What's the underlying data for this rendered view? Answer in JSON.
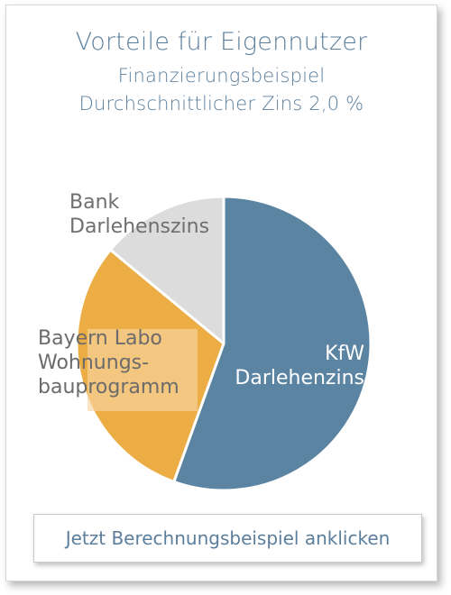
{
  "header": {
    "title": "Vorteile für Eigennutzer",
    "subtitle": "Finanzierungsbeispiel",
    "rate_note": "Durchschnittlicher Zins 2,0 %"
  },
  "chart_data": {
    "type": "pie",
    "slices": [
      {
        "label": "KfW\nDarlehenzins",
        "value": 55.5,
        "color": "#5b84a3",
        "label_color": "#ffffff"
      },
      {
        "label": "Bayern Labo\nWohnungs-\nbauprogramm",
        "value": 30.5,
        "color": "#ecad45",
        "label_color": "#6b6b6b"
      },
      {
        "label": "Bank\nDarlehenszins",
        "value": 14.0,
        "color": "#dcdcdc",
        "label_color": "#6f6f6f"
      }
    ],
    "start_angle_deg": 0,
    "direction": "clockwise",
    "slice_border_color": "#ffffff"
  },
  "cta": {
    "label": "Jetzt Berechnungsbeispiel anklicken"
  }
}
